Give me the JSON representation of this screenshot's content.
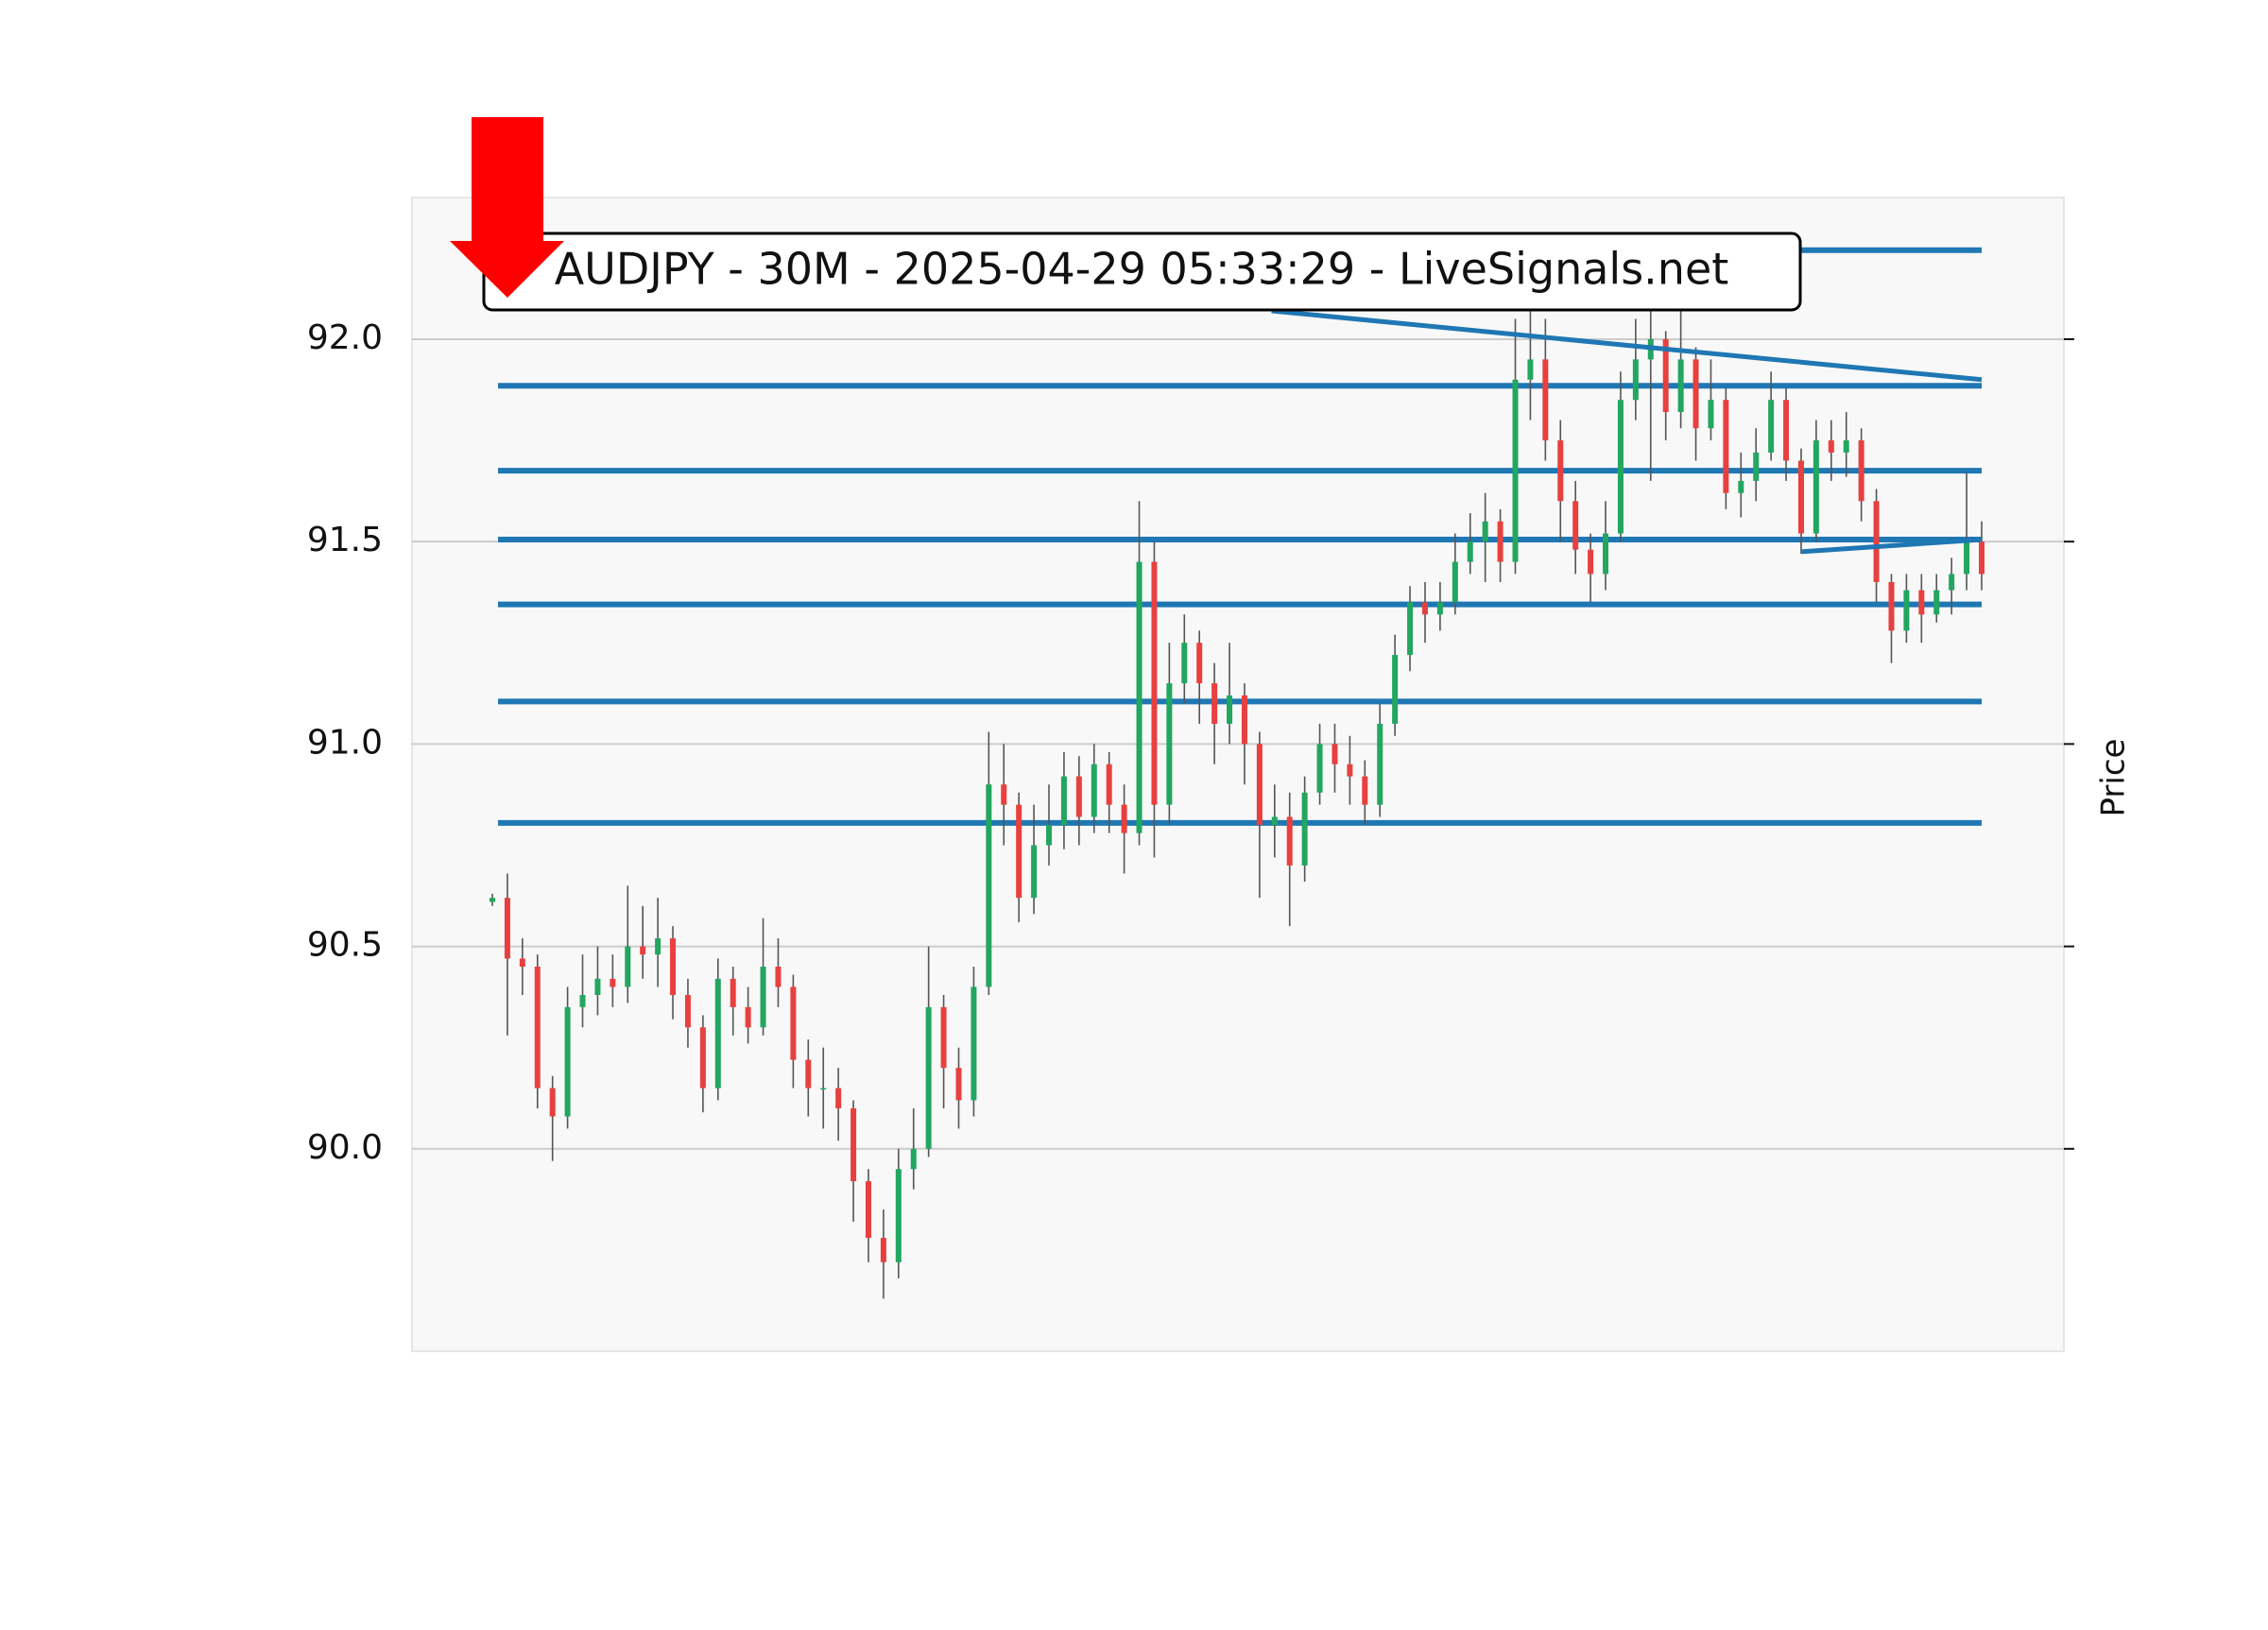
{
  "chart_data": {
    "type": "candlestick",
    "title": "AUDJPY - 30M - 2025-04-29 05:33:29 - LiveSignals.net",
    "y_label": "Price",
    "ylim": [
      89.5,
      92.35
    ],
    "yticks": [
      {
        "value": 90.0,
        "label": "90.0"
      },
      90.5,
      {
        "value": 91.0,
        "label": "91.0"
      },
      91.5,
      {
        "value": 92.0,
        "label": "92.0"
      }
    ],
    "grid": true,
    "up_color": "#22a660",
    "down_color": "#e8403f",
    "level_color": "#1f77b4",
    "open": [
      90.61,
      90.62,
      90.47,
      90.45,
      90.15,
      90.08,
      90.35,
      90.38,
      90.42,
      90.4,
      90.5,
      90.48,
      90.52,
      90.38,
      90.3,
      90.15,
      90.42,
      90.35,
      90.3,
      90.45,
      90.4,
      90.22,
      90.15,
      90.15,
      90.1,
      89.92,
      89.78,
      89.72,
      89.95,
      90.0,
      90.35,
      90.2,
      90.12,
      90.4,
      90.9,
      90.85,
      90.62,
      90.75,
      90.8,
      90.92,
      90.82,
      90.95,
      90.85,
      90.78,
      91.45,
      90.85,
      91.15,
      91.25,
      91.15,
      91.05,
      91.12,
      91.0,
      90.8,
      90.82,
      90.7,
      90.88,
      91.0,
      90.95,
      90.92,
      90.85,
      91.05,
      91.22,
      91.35,
      91.32,
      91.35,
      91.45,
      91.5,
      91.55,
      91.45,
      91.9,
      91.95,
      91.75,
      91.6,
      91.48,
      91.42,
      91.52,
      91.85,
      91.95,
      92.0,
      91.82,
      91.95,
      91.78,
      91.85,
      91.62,
      91.65,
      91.72,
      91.85,
      91.7,
      91.52,
      91.75,
      91.72,
      91.75,
      91.6,
      91.4,
      91.28,
      91.38,
      91.32,
      91.38,
      91.42,
      91.5
    ],
    "high": [
      90.63,
      90.68,
      90.52,
      90.48,
      90.18,
      90.4,
      90.48,
      90.5,
      90.48,
      90.65,
      90.6,
      90.62,
      90.55,
      90.42,
      90.33,
      90.47,
      90.45,
      90.4,
      90.57,
      90.52,
      90.43,
      90.27,
      90.25,
      90.2,
      90.12,
      89.95,
      89.85,
      90.0,
      90.1,
      90.5,
      90.38,
      90.25,
      90.45,
      91.03,
      91.0,
      90.88,
      90.85,
      90.9,
      90.98,
      90.97,
      91.0,
      90.98,
      90.9,
      91.6,
      91.5,
      91.25,
      91.32,
      91.28,
      91.2,
      91.25,
      91.15,
      91.03,
      90.9,
      90.88,
      90.92,
      91.05,
      91.05,
      91.02,
      90.96,
      91.1,
      91.27,
      91.39,
      91.4,
      91.4,
      91.52,
      91.57,
      91.62,
      91.58,
      92.05,
      92.12,
      92.05,
      91.8,
      91.65,
      91.52,
      91.6,
      91.92,
      92.05,
      92.08,
      92.02,
      92.08,
      91.98,
      91.95,
      91.88,
      91.72,
      91.78,
      91.92,
      91.88,
      91.73,
      91.8,
      91.8,
      91.82,
      91.78,
      91.63,
      91.42,
      91.42,
      91.42,
      91.42,
      91.46,
      91.67,
      91.55
    ],
    "low": [
      90.6,
      90.28,
      90.38,
      90.1,
      89.97,
      90.05,
      90.3,
      90.33,
      90.35,
      90.36,
      90.42,
      90.4,
      90.32,
      90.25,
      90.09,
      90.12,
      90.28,
      90.26,
      90.28,
      90.35,
      90.15,
      90.08,
      90.05,
      90.02,
      89.82,
      89.72,
      89.63,
      89.68,
      89.9,
      89.98,
      90.1,
      90.05,
      90.08,
      90.38,
      90.75,
      90.56,
      90.58,
      90.7,
      90.74,
      90.75,
      90.78,
      90.78,
      90.68,
      90.75,
      90.72,
      90.8,
      91.1,
      91.05,
      90.95,
      91.0,
      90.9,
      90.62,
      90.72,
      90.55,
      90.66,
      90.85,
      90.88,
      90.85,
      90.8,
      90.82,
      91.02,
      91.18,
      91.25,
      91.28,
      91.32,
      91.42,
      91.4,
      91.4,
      91.42,
      91.8,
      91.7,
      91.5,
      91.42,
      91.35,
      91.38,
      91.5,
      91.8,
      91.65,
      91.75,
      91.78,
      91.7,
      91.75,
      91.58,
      91.56,
      91.6,
      91.7,
      91.65,
      91.47,
      91.5,
      91.65,
      91.66,
      91.55,
      91.35,
      91.2,
      91.25,
      91.25,
      91.3,
      91.32,
      91.38,
      91.38
    ],
    "close": [
      90.62,
      90.47,
      90.45,
      90.15,
      90.08,
      90.35,
      90.38,
      90.42,
      90.4,
      90.5,
      90.48,
      90.52,
      90.38,
      90.3,
      90.15,
      90.42,
      90.35,
      90.3,
      90.45,
      90.4,
      90.22,
      90.15,
      90.15,
      90.1,
      89.92,
      89.78,
      89.72,
      89.95,
      90.0,
      90.35,
      90.2,
      90.12,
      90.4,
      90.9,
      90.85,
      90.62,
      90.75,
      90.8,
      90.92,
      90.82,
      90.95,
      90.85,
      90.78,
      91.45,
      90.85,
      91.15,
      91.25,
      91.15,
      91.05,
      91.12,
      91.0,
      90.8,
      90.82,
      90.7,
      90.88,
      91.0,
      90.95,
      90.92,
      90.85,
      91.05,
      91.22,
      91.35,
      91.32,
      91.35,
      91.45,
      91.5,
      91.55,
      91.45,
      91.9,
      91.95,
      91.75,
      91.6,
      91.48,
      91.42,
      91.52,
      91.85,
      91.95,
      92.0,
      91.82,
      91.95,
      91.78,
      91.85,
      91.62,
      91.65,
      91.72,
      91.85,
      91.7,
      91.52,
      91.75,
      91.72,
      91.75,
      91.6,
      91.4,
      91.28,
      91.38,
      91.32,
      91.38,
      91.42,
      91.5,
      91.42
    ],
    "levels": [
      92.22,
      91.885,
      91.675,
      91.505,
      91.345,
      91.105,
      90.805
    ],
    "trendlines": [
      {
        "x": [
          51.8,
          99
        ],
        "values": [
          92.07,
          91.9
        ]
      },
      {
        "x": [
          87,
          99
        ],
        "values": [
          91.475,
          91.505
        ]
      }
    ]
  }
}
